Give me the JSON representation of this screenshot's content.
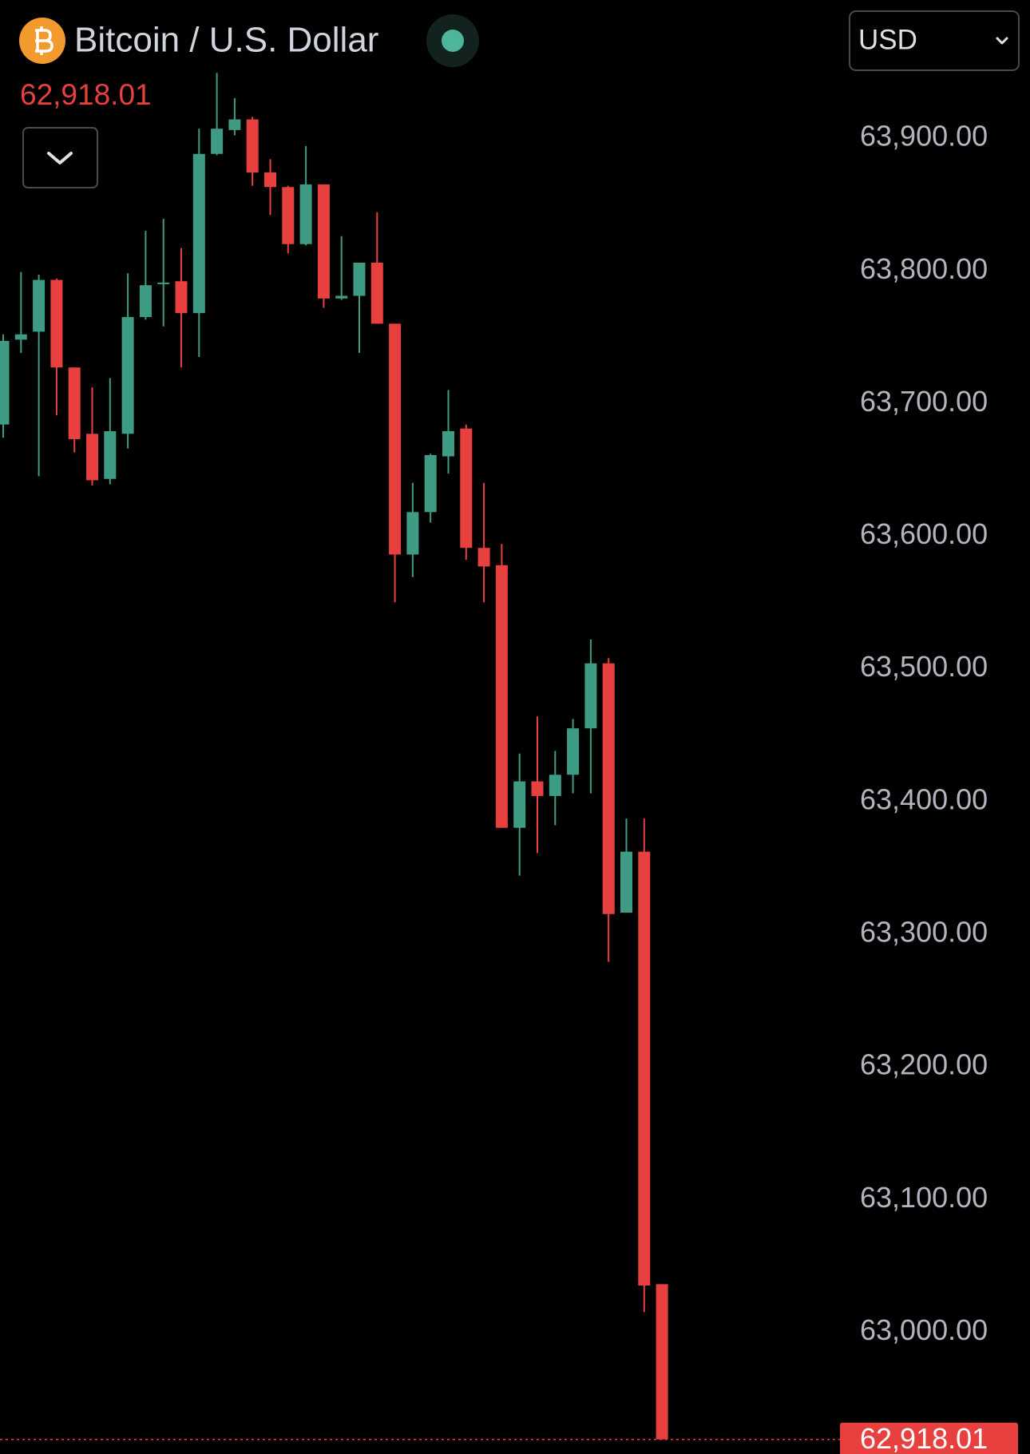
{
  "chart_data": {
    "type": "candlestick",
    "title": "Bitcoin / U.S. Dollar",
    "currency": "USD",
    "last_price": {
      "value": 62918.01,
      "label": "62,918.01"
    },
    "up_color": "#3f9c84",
    "down_color": "#e8403f",
    "ylim": [
      62907,
      64003
    ],
    "yticks": [
      {
        "value": 63000,
        "label": "63,000.00"
      },
      {
        "value": 63100,
        "label": "63,100.00"
      },
      {
        "value": 63200,
        "label": "63,200.00"
      },
      {
        "value": 63300,
        "label": "63,300.00"
      },
      {
        "value": 63400,
        "label": "63,400.00"
      },
      {
        "value": 63500,
        "label": "63,500.00"
      },
      {
        "value": 63600,
        "label": "63,600.00"
      },
      {
        "value": 63700,
        "label": "63,700.00"
      },
      {
        "value": 63800,
        "label": "63,800.00"
      },
      {
        "value": 63900,
        "label": "63,900.00"
      }
    ],
    "open": [
      63683,
      63747,
      63753,
      63792,
      63726,
      63676,
      63642,
      63676,
      63764,
      63789,
      63791,
      63767,
      63887,
      63905,
      63913,
      63873,
      63862,
      63819,
      63864,
      63778,
      63780,
      63805,
      63759,
      63585,
      63617,
      63659,
      63680,
      63590,
      63577,
      63379,
      63414,
      63403,
      63419,
      63454,
      63503,
      63315,
      63361,
      63035
    ],
    "high": [
      63751,
      63798,
      63796,
      63793,
      63726,
      63711,
      63718,
      63797,
      63829,
      63838,
      63816,
      63906,
      63948,
      63929,
      63915,
      63883,
      63863,
      63893,
      63864,
      63825,
      63805,
      63843,
      63759,
      63639,
      63661,
      63709,
      63683,
      63639,
      63593,
      63435,
      63463,
      63437,
      63461,
      63521,
      63507,
      63386,
      63386,
      63035
    ],
    "low": [
      63673,
      63737,
      63644,
      63690,
      63662,
      63637,
      63638,
      63665,
      63762,
      63757,
      63726,
      63734,
      63886,
      63901,
      63863,
      63841,
      63812,
      63818,
      63771,
      63777,
      63737,
      63759,
      63549,
      63568,
      63609,
      63646,
      63581,
      63549,
      63379,
      63343,
      63360,
      63381,
      63405,
      63405,
      63278,
      63315,
      63014,
      62918.01
    ],
    "close": [
      63746,
      63751,
      63792,
      63726,
      63672,
      63641,
      63678,
      63764,
      63788,
      63790,
      63767,
      63887,
      63906,
      63913,
      63873,
      63862,
      63819,
      63864,
      63778,
      63780,
      63805,
      63759,
      63585,
      63617,
      63660,
      63678,
      63590,
      63576,
      63379,
      63414,
      63403,
      63419,
      63454,
      63503,
      63314,
      63361,
      63034,
      62918.01
    ]
  }
}
